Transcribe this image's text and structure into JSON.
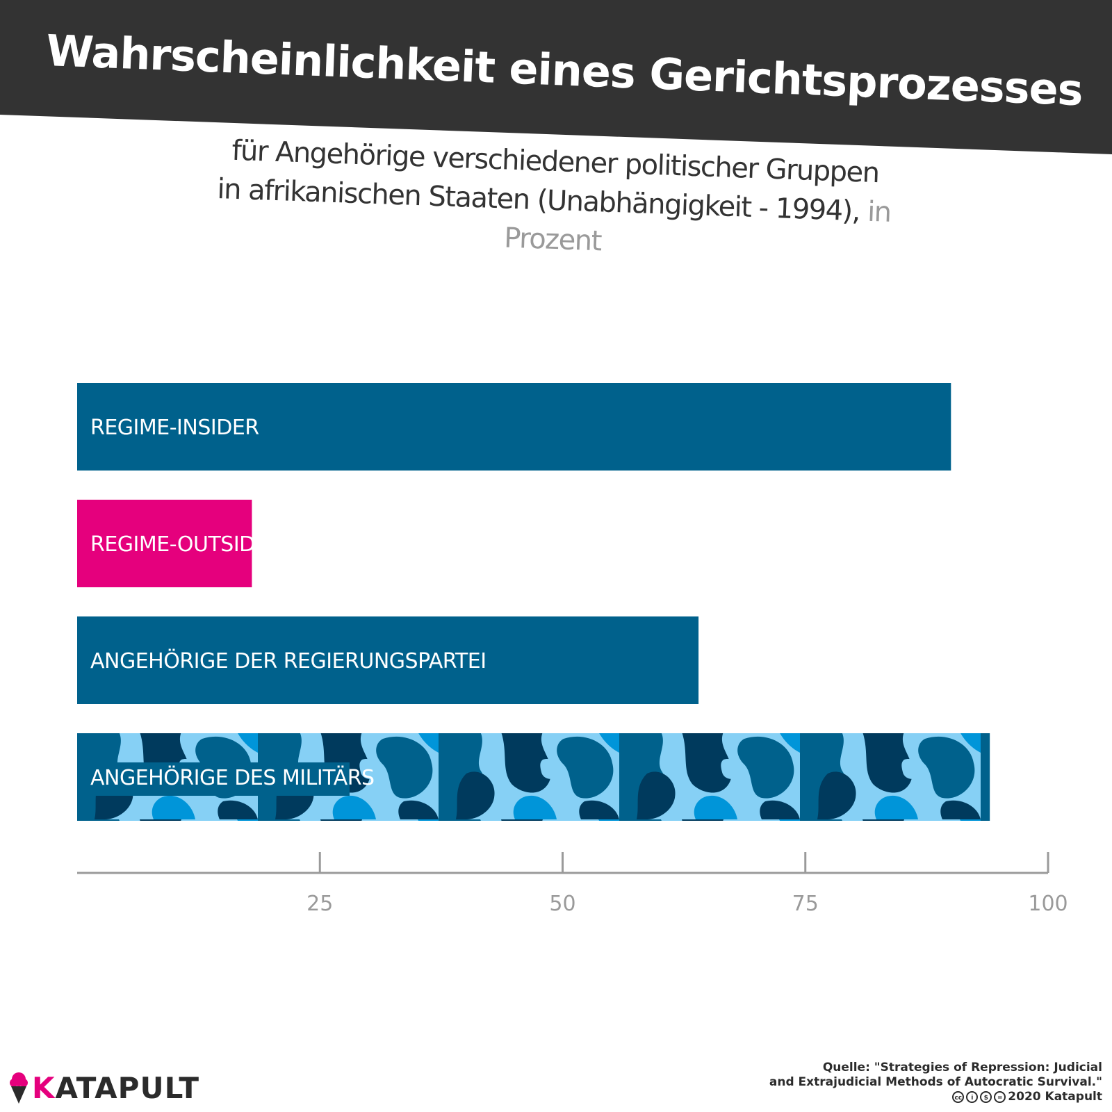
{
  "title": "Wahrscheinlichkeit eines Gerichtsprozesses",
  "subtitle": {
    "line1": "für Angehörige verschiedener politischer Gruppen",
    "line2": "in afrikanischen Staaten (Unabhängigkeit - 1994),",
    "unit": "in Prozent"
  },
  "colors": {
    "header": "#333333",
    "bar_blue": "#00618c",
    "bar_pink": "#e5007d",
    "camo_light": "#86d0f5",
    "camo_mid": "#0095d9",
    "camo_dark": "#003a5d",
    "axis": "#9a9a9a"
  },
  "chart_data": {
    "type": "bar",
    "orientation": "horizontal",
    "categories": [
      "REGIME-INSIDER",
      "REGIME-OUTSIDER",
      "ANGEHÖRIGE DER REGIERUNGSPARTEI",
      "ANGEHÖRIGE DES MILITÄRS"
    ],
    "values": [
      90,
      18,
      64,
      94
    ],
    "bar_styles": [
      "blue",
      "pink",
      "blue",
      "camouflage"
    ],
    "xlim": [
      0,
      100
    ],
    "xticks": [
      25,
      50,
      75,
      100
    ],
    "xlabel": "",
    "ylabel": "",
    "grid": false
  },
  "logo": {
    "k": "K",
    "rest": "ATAPULT",
    "icon": "ice-cream-icon"
  },
  "source": {
    "line1": "Quelle: \"Strategies of Repression: Judicial",
    "line2": "and Extrajudicial Methods of Autocratic Survival.\"",
    "license_icons": [
      "cc-icon",
      "by-icon",
      "nc-icon",
      "nd-icon"
    ],
    "license_glyphs": [
      "cc",
      "i",
      "$",
      "="
    ],
    "year_owner": "2020 Katapult"
  }
}
